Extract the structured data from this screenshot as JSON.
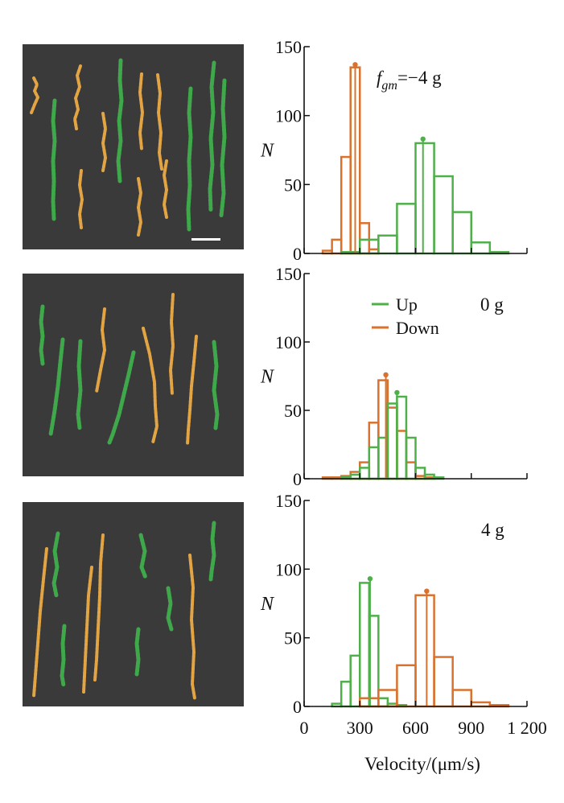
{
  "colors": {
    "up": "#4fb04a",
    "down": "#d9722e",
    "track_orange": "#e3a443",
    "track_green": "#3ea84a",
    "panel_bg": "#3a3a3a",
    "axis": "#111111",
    "scale_bar": "#ffffff"
  },
  "legend": {
    "up_label": "Up",
    "down_label": "Down"
  },
  "xlabel": "Velocity/(μm/s)",
  "chart_data": [
    {
      "type": "bar",
      "condition": "f_gm=−4 g",
      "condition_parts": {
        "f": "f",
        "sub": "gm",
        "rest": "=−4 g"
      },
      "ylabel": "N",
      "ylim": [
        0,
        150
      ],
      "yticks": [
        0,
        50,
        100,
        150
      ],
      "xlim": [
        0,
        1200
      ],
      "xticks": [
        0,
        300,
        600,
        900,
        1200
      ],
      "xtick_labels": [
        "",
        "",
        "",
        "",
        ""
      ],
      "series": [
        {
          "name": "Down",
          "bin_width": 50,
          "x": [
            125,
            175,
            225,
            275,
            325,
            375
          ],
          "values": [
            2,
            10,
            70,
            135,
            22,
            3
          ]
        },
        {
          "name": "Up",
          "bin_width": 100,
          "x": [
            250,
            350,
            450,
            550,
            650,
            750,
            850,
            950,
            1050
          ],
          "values": [
            1,
            10,
            13,
            36,
            80,
            56,
            30,
            8,
            1
          ]
        }
      ],
      "peaks": [
        {
          "series": "Down",
          "x": 275,
          "y": 137
        },
        {
          "series": "Up",
          "x": 640,
          "y": 83
        }
      ]
    },
    {
      "type": "bar",
      "condition": "0 g",
      "ylabel": "N",
      "ylim": [
        0,
        150
      ],
      "yticks": [
        0,
        50,
        100,
        150
      ],
      "xlim": [
        0,
        1200
      ],
      "xticks": [
        0,
        300,
        600,
        900,
        1200
      ],
      "xtick_labels": [
        "",
        "",
        "",
        "",
        ""
      ],
      "series": [
        {
          "name": "Down",
          "bin_width": 50,
          "x": [
            125,
            175,
            225,
            275,
            325,
            375,
            425,
            475,
            525,
            575,
            625,
            675
          ],
          "values": [
            1,
            1,
            2,
            5,
            12,
            41,
            72,
            52,
            35,
            12,
            2,
            1
          ]
        },
        {
          "name": "Up",
          "bin_width": 50,
          "x": [
            225,
            275,
            325,
            375,
            425,
            475,
            525,
            575,
            625,
            675,
            725
          ],
          "values": [
            1,
            3,
            8,
            23,
            30,
            55,
            60,
            30,
            8,
            3,
            1
          ]
        }
      ],
      "peaks": [
        {
          "series": "Down",
          "x": 440,
          "y": 76
        },
        {
          "series": "Up",
          "x": 500,
          "y": 63
        }
      ]
    },
    {
      "type": "bar",
      "condition": "4 g",
      "ylabel": "N",
      "ylim": [
        0,
        150
      ],
      "yticks": [
        0,
        50,
        100,
        150
      ],
      "xlim": [
        0,
        1200
      ],
      "xticks": [
        0,
        300,
        600,
        900,
        1200
      ],
      "xtick_labels": [
        "0",
        "300",
        "600",
        "900",
        "1 200"
      ],
      "series": [
        {
          "name": "Up",
          "bin_width": 50,
          "x": [
            175,
            225,
            275,
            325,
            375,
            425,
            475,
            525
          ],
          "values": [
            2,
            18,
            37,
            90,
            66,
            6,
            2,
            1
          ]
        },
        {
          "name": "Down",
          "bin_width": 100,
          "x": [
            350,
            450,
            550,
            650,
            750,
            850,
            950,
            1050
          ],
          "values": [
            6,
            12,
            30,
            81,
            36,
            12,
            3,
            1
          ]
        }
      ],
      "peaks": [
        {
          "series": "Up",
          "x": 355,
          "y": 93
        },
        {
          "series": "Down",
          "x": 660,
          "y": 84
        }
      ]
    }
  ]
}
